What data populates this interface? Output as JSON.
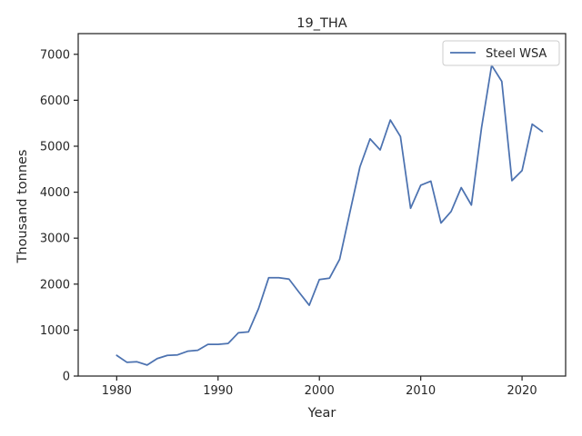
{
  "chart_data": {
    "type": "line",
    "title": "19_THA",
    "xlabel": "Year",
    "ylabel": "Thousand tonnes",
    "xlim": [
      1976.2,
      2024.3
    ],
    "ylim": [
      0,
      7450
    ],
    "xticks": [
      1980,
      1990,
      2000,
      2010,
      2020
    ],
    "yticks": [
      0,
      1000,
      2000,
      3000,
      4000,
      5000,
      6000,
      7000
    ],
    "grid": false,
    "legend_position": "top-right",
    "series": [
      {
        "name": "Steel WSA",
        "color": "#4c72b0",
        "x": [
          1980,
          1981,
          1982,
          1983,
          1984,
          1985,
          1986,
          1987,
          1988,
          1989,
          1990,
          1991,
          1992,
          1993,
          1994,
          1995,
          1996,
          1997,
          1998,
          1999,
          2000,
          2001,
          2002,
          2003,
          2004,
          2005,
          2006,
          2007,
          2008,
          2009,
          2010,
          2011,
          2012,
          2013,
          2014,
          2015,
          2016,
          2017,
          2018,
          2019,
          2020,
          2021,
          2022
        ],
        "y": [
          450,
          300,
          310,
          240,
          380,
          450,
          460,
          540,
          560,
          690,
          690,
          710,
          940,
          960,
          1470,
          2140,
          2140,
          2110,
          1820,
          1540,
          2100,
          2130,
          2540,
          3550,
          4550,
          5160,
          4920,
          5570,
          5210,
          3650,
          4150,
          4240,
          3330,
          3580,
          4100,
          3720,
          5400,
          6760,
          6410,
          4250,
          4470,
          5480,
          5320
        ]
      }
    ]
  }
}
